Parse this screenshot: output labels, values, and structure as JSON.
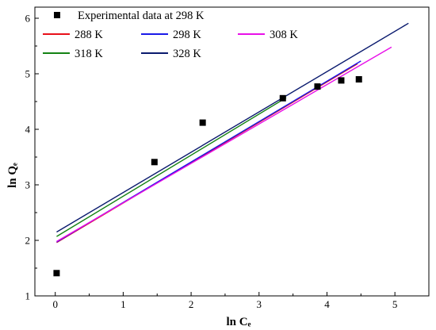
{
  "chart_data": {
    "type": "scatter",
    "xlabel": "ln Cₑ",
    "ylabel": "ln Qₑ",
    "xlim": [
      -0.3,
      5.5
    ],
    "ylim": [
      1.0,
      6.2
    ],
    "x_ticks": [
      "0",
      "1",
      "2",
      "3",
      "4",
      "5"
    ],
    "y_ticks": [
      "1",
      "2",
      "3",
      "4",
      "5",
      "6"
    ],
    "grid": false,
    "legend_position": "top-left",
    "scatter_series": {
      "name": "Experimental data at 298 K",
      "color": "#000000",
      "marker": "square",
      "x": [
        0.02,
        1.46,
        2.17,
        3.35,
        3.86,
        4.21,
        4.47
      ],
      "y": [
        1.41,
        3.41,
        4.12,
        4.56,
        4.77,
        4.88,
        4.9
      ]
    },
    "line_series": [
      {
        "name": "288 K",
        "color": "#e8101a",
        "x": [
          0.02,
          4.45
        ],
        "y": [
          1.96,
          5.18
        ]
      },
      {
        "name": "298 K",
        "color": "#1a1ae8",
        "x": [
          0.02,
          4.5
        ],
        "y": [
          1.97,
          5.23
        ]
      },
      {
        "name": "308 K",
        "color": "#e810e8",
        "x": [
          0.02,
          4.95
        ],
        "y": [
          1.98,
          5.48
        ]
      },
      {
        "name": "318 K",
        "color": "#148214",
        "x": [
          0.02,
          3.4
        ],
        "y": [
          2.07,
          4.57
        ]
      },
      {
        "name": "328 K",
        "color": "#0a1a6e",
        "x": [
          0.02,
          5.2
        ],
        "y": [
          2.15,
          5.91
        ]
      }
    ]
  }
}
